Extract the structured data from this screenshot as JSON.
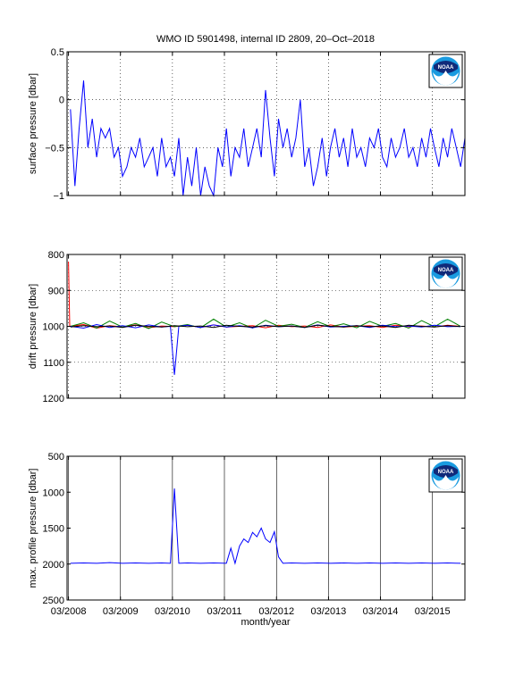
{
  "figure": {
    "title": "WMO ID 5901498, internal ID 2809, 20–Oct–2018",
    "xlabel": "month/year",
    "x_ticks": [
      "03/2008",
      "03/2009",
      "03/2010",
      "03/2011",
      "03/2012",
      "03/2013",
      "03/2014",
      "03/2015"
    ],
    "logo_icon": "noaa-logo-icon",
    "logo_text": "NOAA"
  },
  "colors": {
    "blue": "#0000ff",
    "green": "#008000",
    "red": "#ff0000",
    "black": "#000000"
  },
  "chart_data": [
    {
      "type": "line",
      "ylabel": "surface pressure [dbar]",
      "ylim": [
        -1,
        0.5
      ],
      "y_reversed": false,
      "y_ticks": [
        "0.5",
        "0",
        "−0.5",
        "−1"
      ],
      "y_tick_values": [
        0.5,
        0,
        -0.5,
        -1
      ],
      "xlim": [
        "2008-02-20",
        "2015-10-15"
      ],
      "grid": "dotted",
      "series": [
        {
          "color": "#0000ff",
          "x": [
            "2008-03",
            "2008-04",
            "2008-05",
            "2008-06",
            "2008-07",
            "2008-08",
            "2008-09",
            "2008-10",
            "2008-11",
            "2008-12",
            "2009-01",
            "2009-02",
            "2009-03",
            "2009-04",
            "2009-05",
            "2009-06",
            "2009-07",
            "2009-08",
            "2009-09",
            "2009-10",
            "2009-11",
            "2009-12",
            "2010-01",
            "2010-02",
            "2010-03",
            "2010-04",
            "2010-05",
            "2010-06",
            "2010-07",
            "2010-08",
            "2010-09",
            "2010-10",
            "2010-11",
            "2010-12",
            "2011-01",
            "2011-02",
            "2011-03",
            "2011-04",
            "2011-05",
            "2011-06",
            "2011-07",
            "2011-08",
            "2011-09",
            "2011-10",
            "2011-11",
            "2011-12",
            "2012-01",
            "2012-02",
            "2012-03",
            "2012-04",
            "2012-05",
            "2012-06",
            "2012-07",
            "2012-08",
            "2012-09",
            "2012-10",
            "2012-11",
            "2012-12",
            "2013-01",
            "2013-02",
            "2013-03",
            "2013-04",
            "2013-05",
            "2013-06",
            "2013-07",
            "2013-08",
            "2013-09",
            "2013-10",
            "2013-11",
            "2013-12",
            "2014-01",
            "2014-02",
            "2014-03",
            "2014-04",
            "2014-05",
            "2014-06",
            "2014-07",
            "2014-08",
            "2014-09",
            "2014-10",
            "2014-11",
            "2014-12",
            "2015-01",
            "2015-02",
            "2015-03",
            "2015-04",
            "2015-05",
            "2015-06",
            "2015-07",
            "2015-08",
            "2015-09",
            "2015-10"
          ],
          "values": [
            -0.1,
            -0.9,
            -0.3,
            0.2,
            -0.5,
            -0.2,
            -0.6,
            -0.3,
            -0.4,
            -0.3,
            -0.6,
            -0.5,
            -0.8,
            -0.7,
            -0.5,
            -0.6,
            -0.4,
            -0.7,
            -0.6,
            -0.5,
            -0.8,
            -0.4,
            -0.7,
            -0.6,
            -0.8,
            -0.4,
            -1.0,
            -0.6,
            -0.9,
            -0.5,
            -1.0,
            -0.7,
            -0.9,
            -1.0,
            -0.5,
            -0.7,
            -0.3,
            -0.8,
            -0.5,
            -0.6,
            -0.3,
            -0.7,
            -0.5,
            -0.3,
            -0.6,
            0.1,
            -0.4,
            -0.8,
            -0.2,
            -0.5,
            -0.3,
            -0.6,
            -0.4,
            0.0,
            -0.7,
            -0.5,
            -0.9,
            -0.7,
            -0.4,
            -0.8,
            -0.5,
            -0.3,
            -0.6,
            -0.4,
            -0.7,
            -0.3,
            -0.6,
            -0.5,
            -0.7,
            -0.4,
            -0.5,
            -0.3,
            -0.6,
            -0.7,
            -0.4,
            -0.6,
            -0.5,
            -0.3,
            -0.6,
            -0.5,
            -0.7,
            -0.4,
            -0.6,
            -0.3,
            -0.5,
            -0.7,
            -0.4,
            -0.6,
            -0.3,
            -0.5,
            -0.7,
            -0.4
          ]
        }
      ]
    },
    {
      "type": "line",
      "ylabel": "drift pressure [dbar]",
      "ylim": [
        800,
        1200
      ],
      "y_reversed": true,
      "y_ticks": [
        "800",
        "900",
        "1000",
        "1100",
        "1200"
      ],
      "y_tick_values": [
        800,
        900,
        1000,
        1100,
        1200
      ],
      "xlim": [
        "2008-02-20",
        "2015-10-15"
      ],
      "grid": "dotted",
      "series": [
        {
          "color": "#ff0000",
          "x": [
            "2008-03-01",
            "2008-03-10",
            "2008-06",
            "2008-09",
            "2008-12",
            "2009-03",
            "2009-06",
            "2009-09",
            "2009-12",
            "2010-03",
            "2010-06",
            "2010-09",
            "2010-12",
            "2011-03",
            "2011-06",
            "2011-09",
            "2011-12",
            "2012-03",
            "2012-06",
            "2012-09",
            "2012-12",
            "2013-03",
            "2013-06",
            "2013-09",
            "2013-12",
            "2014-03",
            "2014-06",
            "2014-09",
            "2014-12",
            "2015-03",
            "2015-06",
            "2015-09"
          ],
          "values": [
            820,
            1000,
            995,
            1005,
            998,
            1002,
            996,
            1004,
            999,
            1001,
            997,
            1003,
            996,
            1002,
            1000,
            998,
            1004,
            997,
            1001,
            999,
            1003,
            996,
            1002,
            1000,
            998,
            1003,
            997,
            1001,
            999,
            1002,
            997,
            1000
          ]
        },
        {
          "color": "#008000",
          "x": [
            "2008-03",
            "2008-06",
            "2008-09",
            "2008-12",
            "2009-03",
            "2009-06",
            "2009-09",
            "2009-12",
            "2010-03",
            "2010-06",
            "2010-09",
            "2010-12",
            "2011-03",
            "2011-06",
            "2011-09",
            "2011-12",
            "2012-03",
            "2012-06",
            "2012-09",
            "2012-12",
            "2013-03",
            "2013-06",
            "2013-09",
            "2013-12",
            "2014-03",
            "2014-06",
            "2014-09",
            "2014-12",
            "2015-03",
            "2015-06",
            "2015-09"
          ],
          "values": [
            1000,
            990,
            1005,
            985,
            1002,
            992,
            1006,
            988,
            1001,
            995,
            1004,
            980,
            1002,
            990,
            1005,
            983,
            1000,
            994,
            1003,
            987,
            1001,
            993,
            1004,
            986,
            1000,
            992,
            1005,
            984,
            1001,
            980,
            1000
          ]
        },
        {
          "color": "#0000ff",
          "x": [
            "2008-03",
            "2008-06",
            "2008-09",
            "2008-12",
            "2009-03",
            "2009-06",
            "2009-09",
            "2009-12",
            "2010-02",
            "2010-03-15",
            "2010-04",
            "2010-06",
            "2010-09",
            "2010-12",
            "2011-03",
            "2011-06",
            "2011-09",
            "2011-12",
            "2012-03",
            "2012-06",
            "2012-09",
            "2012-12",
            "2013-03",
            "2013-06",
            "2013-09",
            "2013-12",
            "2014-03",
            "2014-06",
            "2014-09",
            "2014-12",
            "2015-03",
            "2015-06",
            "2015-09"
          ],
          "values": [
            1000,
            1005,
            995,
            1003,
            998,
            1004,
            996,
            1002,
            1000,
            1135,
            1000,
            997,
            1003,
            996,
            1002,
            998,
            1004,
            997,
            1001,
            999,
            1003,
            996,
            1002,
            1000,
            998,
            1003,
            997,
            1001,
            999,
            1002,
            997,
            1001,
            1000
          ]
        },
        {
          "color": "#000000",
          "x": [
            "2008-03",
            "2008-06",
            "2008-09",
            "2008-12",
            "2009-03",
            "2009-06",
            "2009-09",
            "2009-12",
            "2010-03",
            "2010-06",
            "2010-09",
            "2010-12",
            "2011-03",
            "2011-06",
            "2011-09",
            "2011-12",
            "2012-03",
            "2012-06",
            "2012-09",
            "2012-12",
            "2013-03",
            "2013-06",
            "2013-09",
            "2013-12",
            "2014-03",
            "2014-06",
            "2014-09",
            "2014-12",
            "2015-03",
            "2015-06",
            "2015-09"
          ],
          "values": [
            1002,
            998,
            1001,
            999,
            1003,
            997,
            1000,
            1002,
            998,
            1001,
            999,
            1003,
            997,
            1000,
            1002,
            998,
            1001,
            999,
            1003,
            997,
            1000,
            1002,
            998,
            1001,
            999,
            1003,
            997,
            1000,
            1002,
            998,
            1001
          ]
        }
      ]
    },
    {
      "type": "line",
      "ylabel": "max. profile pressure [dbar]",
      "ylim": [
        500,
        2500
      ],
      "y_reversed": true,
      "y_ticks": [
        "500",
        "1000",
        "1500",
        "2000",
        "2500"
      ],
      "y_tick_values": [
        500,
        1000,
        1500,
        2000,
        2500
      ],
      "xlim": [
        "2008-02-20",
        "2015-10-15"
      ],
      "grid": "solid-vertical",
      "series": [
        {
          "color": "#0000ff",
          "x": [
            "2008-03",
            "2008-06",
            "2008-09",
            "2008-12",
            "2009-03",
            "2009-06",
            "2009-09",
            "2009-12",
            "2010-02",
            "2010-03-15",
            "2010-04",
            "2010-06",
            "2010-09",
            "2010-12",
            "2011-03",
            "2011-04",
            "2011-05",
            "2011-06",
            "2011-07",
            "2011-08",
            "2011-09",
            "2011-10",
            "2011-11",
            "2011-12",
            "2012-01",
            "2012-02",
            "2012-03",
            "2012-04",
            "2012-06",
            "2012-09",
            "2012-12",
            "2013-03",
            "2013-06",
            "2013-09",
            "2013-12",
            "2014-03",
            "2014-06",
            "2014-09",
            "2014-12",
            "2015-03",
            "2015-06",
            "2015-09"
          ],
          "values": [
            1990,
            1985,
            1990,
            1980,
            1990,
            1985,
            1990,
            1985,
            1990,
            950,
            1990,
            1985,
            1990,
            1985,
            1990,
            1780,
            1990,
            1750,
            1650,
            1700,
            1560,
            1620,
            1500,
            1650,
            1700,
            1550,
            1900,
            1990,
            1985,
            1990,
            1985,
            1990,
            1985,
            1990,
            1985,
            1990,
            1985,
            1990,
            1985,
            1990,
            1985,
            1990
          ]
        }
      ]
    }
  ]
}
